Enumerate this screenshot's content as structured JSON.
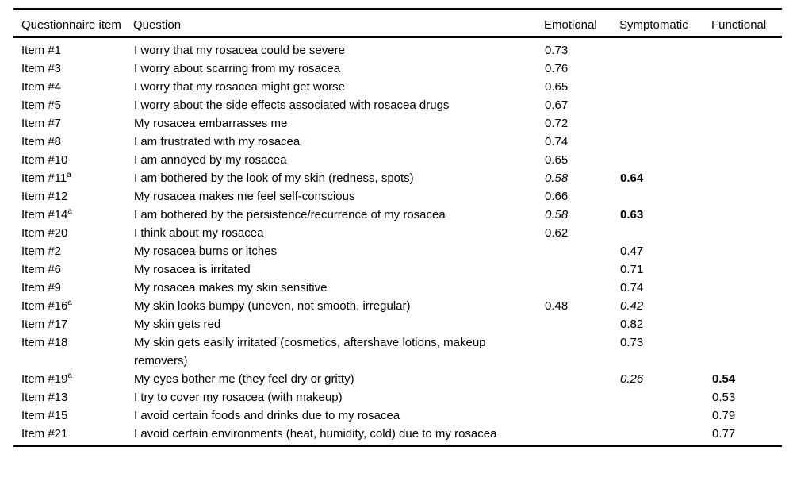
{
  "table": {
    "headers": {
      "item": "Questionnaire item",
      "question": "Question",
      "emotional": "Emotional",
      "symptomatic": "Symptomatic",
      "functional": "Functional"
    },
    "rows": [
      {
        "item": "Item #1",
        "sup": "",
        "question": "I worry that my rosacea could be severe",
        "emotional": {
          "text": "0.73",
          "style": "normal"
        },
        "symptomatic": null,
        "functional": null
      },
      {
        "item": "Item #3",
        "sup": "",
        "question": "I worry about scarring from my rosacea",
        "emotional": {
          "text": "0.76",
          "style": "normal"
        },
        "symptomatic": null,
        "functional": null
      },
      {
        "item": "Item #4",
        "sup": "",
        "question": "I worry that my rosacea might get worse",
        "emotional": {
          "text": "0.65",
          "style": "normal"
        },
        "symptomatic": null,
        "functional": null
      },
      {
        "item": "Item #5",
        "sup": "",
        "question": "I worry about the side effects associated with rosacea drugs",
        "emotional": {
          "text": "0.67",
          "style": "normal"
        },
        "symptomatic": null,
        "functional": null
      },
      {
        "item": "Item #7",
        "sup": "",
        "question": "My rosacea embarrasses me",
        "emotional": {
          "text": "0.72",
          "style": "normal"
        },
        "symptomatic": null,
        "functional": null
      },
      {
        "item": "Item #8",
        "sup": "",
        "question": "I am frustrated with my rosacea",
        "emotional": {
          "text": "0.74",
          "style": "normal"
        },
        "symptomatic": null,
        "functional": null
      },
      {
        "item": "Item #10",
        "sup": "",
        "question": "I am annoyed by my rosacea",
        "emotional": {
          "text": "0.65",
          "style": "normal"
        },
        "symptomatic": null,
        "functional": null
      },
      {
        "item": "Item #11",
        "sup": "a",
        "question": "I am bothered by the look of my skin (redness, spots)",
        "emotional": {
          "text": "0.58",
          "style": "italic"
        },
        "symptomatic": {
          "text": "0.64",
          "style": "bold"
        },
        "functional": null
      },
      {
        "item": "Item #12",
        "sup": "",
        "question": "My rosacea makes me feel self-conscious",
        "emotional": {
          "text": "0.66",
          "style": "normal"
        },
        "symptomatic": null,
        "functional": null
      },
      {
        "item": "Item #14",
        "sup": "a",
        "question": "I am bothered by the persistence/recurrence of my rosacea",
        "emotional": {
          "text": "0.58",
          "style": "italic"
        },
        "symptomatic": {
          "text": "0.63",
          "style": "bold"
        },
        "functional": null
      },
      {
        "item": "Item #20",
        "sup": "",
        "question": "I think about my rosacea",
        "emotional": {
          "text": "0.62",
          "style": "normal"
        },
        "symptomatic": null,
        "functional": null
      },
      {
        "item": "Item #2",
        "sup": "",
        "question": "My rosacea burns or itches",
        "emotional": null,
        "symptomatic": {
          "text": "0.47",
          "style": "normal"
        },
        "functional": null
      },
      {
        "item": "Item #6",
        "sup": "",
        "question": "My rosacea is irritated",
        "emotional": null,
        "symptomatic": {
          "text": "0.71",
          "style": "normal"
        },
        "functional": null
      },
      {
        "item": "Item #9",
        "sup": "",
        "question": "My rosacea makes my skin sensitive",
        "emotional": null,
        "symptomatic": {
          "text": "0.74",
          "style": "normal"
        },
        "functional": null
      },
      {
        "item": "Item #16",
        "sup": "a",
        "question": "My skin looks bumpy (uneven, not smooth, irregular)",
        "emotional": {
          "text": "0.48",
          "style": "normal"
        },
        "symptomatic": {
          "text": "0.42",
          "style": "italic"
        },
        "functional": null
      },
      {
        "item": "Item #17",
        "sup": "",
        "question": "My skin gets red",
        "emotional": null,
        "symptomatic": {
          "text": "0.82",
          "style": "normal"
        },
        "functional": null
      },
      {
        "item": "Item #18",
        "sup": "",
        "question": "My skin gets easily irritated (cosmetics, aftershave lotions, makeup removers)",
        "emotional": null,
        "symptomatic": {
          "text": "0.73",
          "style": "normal"
        },
        "functional": null
      },
      {
        "item": "Item #19",
        "sup": "a",
        "question": "My eyes bother me (they feel dry or gritty)",
        "emotional": null,
        "symptomatic": {
          "text": "0.26",
          "style": "italic"
        },
        "functional": {
          "text": "0.54",
          "style": "bold"
        }
      },
      {
        "item": "Item #13",
        "sup": "",
        "question": "I try to cover my rosacea (with makeup)",
        "emotional": null,
        "symptomatic": null,
        "functional": {
          "text": "0.53",
          "style": "normal"
        }
      },
      {
        "item": "Item #15",
        "sup": "",
        "question": "I avoid certain foods and drinks due to my rosacea",
        "emotional": null,
        "symptomatic": null,
        "functional": {
          "text": "0.79",
          "style": "normal"
        }
      },
      {
        "item": "Item #21",
        "sup": "",
        "question": "I avoid certain environments (heat, humidity, cold) due to my rosacea",
        "emotional": null,
        "symptomatic": null,
        "functional": {
          "text": "0.77",
          "style": "normal"
        }
      }
    ]
  }
}
